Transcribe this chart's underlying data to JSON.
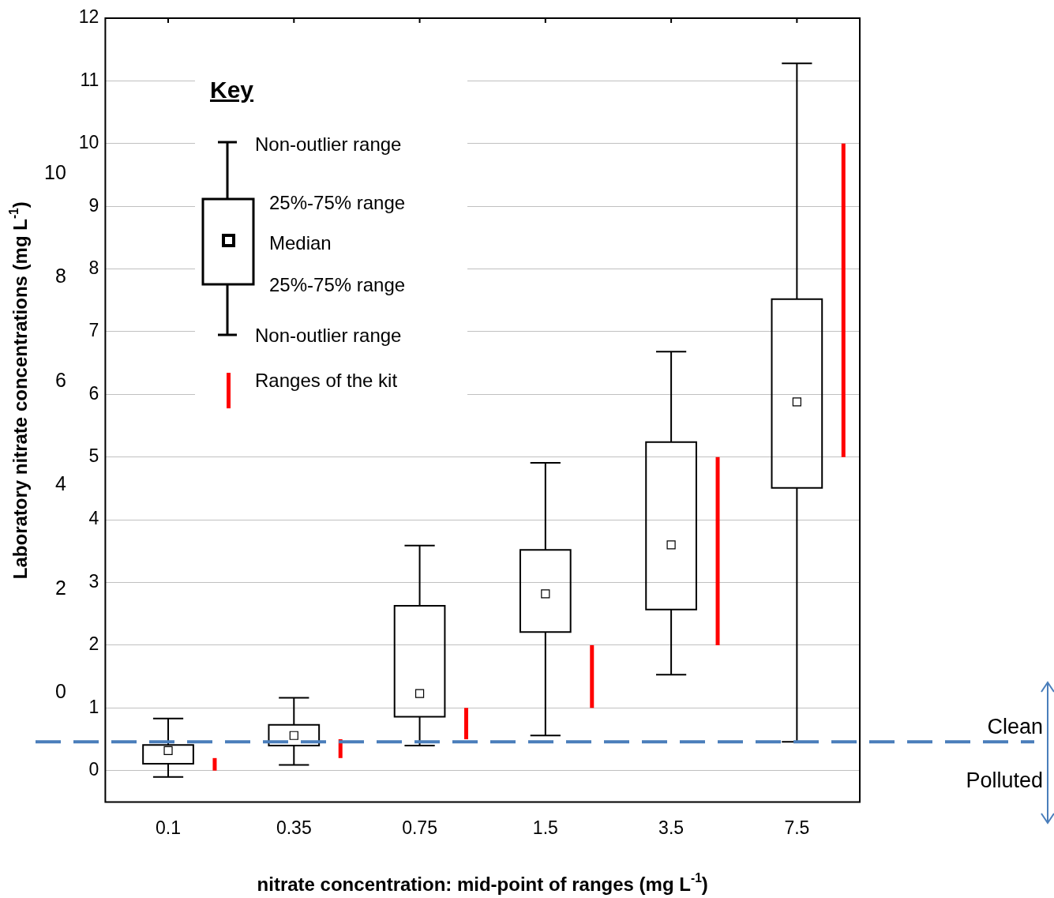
{
  "chart_data": {
    "type": "box",
    "xlabel": "nitrate concentration: mid-point of ranges (mg L$^{-1}$)",
    "y2label": "Laboratory nitrate concentrations (mg L$^{-1}$)",
    "categories": [
      "0.1",
      "0.35",
      "0.75",
      "1.5",
      "3.5",
      "7.5"
    ],
    "series": [
      {
        "color": "#000000",
        "boxes": [
          {
            "low": -0.1,
            "q1": 0.11,
            "median": 0.32,
            "q3": 0.41,
            "high": 0.83
          },
          {
            "low": 0.09,
            "q1": 0.4,
            "median": 0.56,
            "q3": 0.73,
            "high": 1.16
          },
          {
            "low": 0.4,
            "q1": 0.86,
            "median": 1.23,
            "q3": 2.63,
            "high": 3.59
          },
          {
            "low": 0.56,
            "q1": 2.21,
            "median": 2.82,
            "q3": 3.52,
            "high": 4.91
          },
          {
            "low": 1.53,
            "q1": 2.57,
            "median": 3.6,
            "q3": 5.24,
            "high": 6.68
          },
          {
            "low": 0.46,
            "q1": 4.51,
            "median": 5.88,
            "q3": 7.52,
            "high": 11.28
          }
        ]
      },
      {
        "type": "bar",
        "name": "Ranges of the kit",
        "color": "#ff0000",
        "base": [
          0,
          0.2,
          0.5,
          1,
          2,
          5
        ],
        "values": [
          0.2,
          0.3,
          0.5,
          1,
          3,
          5
        ]
      }
    ],
    "ylim": [
      -0.5,
      12
    ],
    "yticks": [
      0,
      1,
      2,
      3,
      4,
      5,
      6,
      7,
      8,
      9,
      10,
      11,
      12
    ],
    "y2lim": [
      -2.1,
      13
    ],
    "y2ticks": [
      0,
      2,
      4,
      6,
      8,
      10
    ],
    "ref_lines": [
      {
        "axis": "y",
        "value": 0.46,
        "color": "#4a7ebb",
        "line_style": "dashed"
      }
    ],
    "grid": "y",
    "legend": "top left",
    "legend_title": "Key",
    "annotations": [
      "Non-outlier range",
      "25%-75% range",
      "Median",
      "25%-75% range",
      "Non-outlier range",
      "Clean",
      "Polluted"
    ]
  }
}
